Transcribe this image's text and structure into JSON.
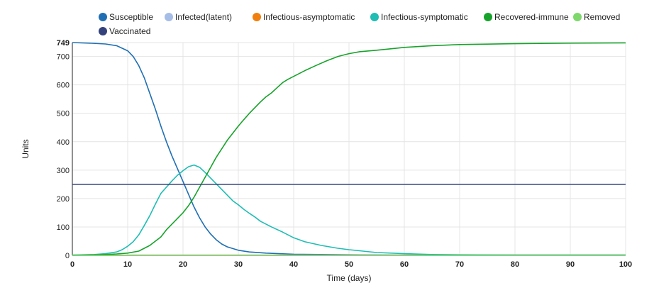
{
  "chart_data": {
    "type": "line",
    "title": "",
    "xlabel": "Time (days)",
    "ylabel": "Units",
    "xlim": [
      0,
      100
    ],
    "ylim": [
      0,
      749
    ],
    "x_ticks": [
      0,
      10,
      20,
      30,
      40,
      50,
      60,
      70,
      80,
      90,
      100
    ],
    "y_ticks": [
      0,
      100,
      200,
      300,
      400,
      500,
      600,
      700
    ],
    "y_max_label": "749",
    "grid": true,
    "legend_position": "top-left",
    "series": [
      {
        "name": "Susceptible",
        "color": "#1f6fb4",
        "points": [
          [
            0,
            749
          ],
          [
            3,
            747
          ],
          [
            6,
            744
          ],
          [
            8,
            738
          ],
          [
            10,
            720
          ],
          [
            11,
            700
          ],
          [
            12,
            668
          ],
          [
            13,
            625
          ],
          [
            14,
            570
          ],
          [
            15,
            515
          ],
          [
            16,
            455
          ],
          [
            17,
            400
          ],
          [
            18,
            350
          ],
          [
            19,
            305
          ],
          [
            20,
            260
          ],
          [
            21,
            215
          ],
          [
            22,
            170
          ],
          [
            23,
            132
          ],
          [
            24,
            100
          ],
          [
            25,
            75
          ],
          [
            26,
            55
          ],
          [
            27,
            40
          ],
          [
            28,
            30
          ],
          [
            30,
            18
          ],
          [
            32,
            12
          ],
          [
            35,
            8
          ],
          [
            40,
            4
          ],
          [
            50,
            2
          ],
          [
            60,
            1
          ],
          [
            100,
            1
          ]
        ]
      },
      {
        "name": "Infected(latent)",
        "color": "#a6bde8",
        "points": [
          [
            0,
            1
          ],
          [
            100,
            1
          ]
        ]
      },
      {
        "name": "Infectious-asymptomatic",
        "color": "#f07f0e",
        "points": [
          [
            0,
            0
          ],
          [
            100,
            0
          ]
        ]
      },
      {
        "name": "Infectious-symptomatic",
        "color": "#1fbdb4",
        "points": [
          [
            0,
            1
          ],
          [
            4,
            3
          ],
          [
            6,
            6
          ],
          [
            8,
            12
          ],
          [
            9,
            20
          ],
          [
            10,
            32
          ],
          [
            11,
            48
          ],
          [
            12,
            72
          ],
          [
            13,
            105
          ],
          [
            14,
            140
          ],
          [
            15,
            180
          ],
          [
            16,
            218
          ],
          [
            17,
            240
          ],
          [
            18,
            262
          ],
          [
            19,
            282
          ],
          [
            20,
            298
          ],
          [
            21,
            312
          ],
          [
            22,
            318
          ],
          [
            23,
            310
          ],
          [
            24,
            292
          ],
          [
            25,
            272
          ],
          [
            26,
            252
          ],
          [
            27,
            232
          ],
          [
            28,
            212
          ],
          [
            29,
            192
          ],
          [
            30,
            178
          ],
          [
            31,
            162
          ],
          [
            32,
            148
          ],
          [
            33,
            135
          ],
          [
            34,
            120
          ],
          [
            35,
            110
          ],
          [
            36,
            100
          ],
          [
            38,
            82
          ],
          [
            40,
            62
          ],
          [
            42,
            48
          ],
          [
            45,
            35
          ],
          [
            48,
            25
          ],
          [
            50,
            20
          ],
          [
            55,
            10
          ],
          [
            60,
            6
          ],
          [
            65,
            3
          ],
          [
            70,
            2
          ],
          [
            80,
            1
          ],
          [
            100,
            1
          ]
        ]
      },
      {
        "name": "Recovered-immune",
        "color": "#17a32b",
        "points": [
          [
            0,
            0
          ],
          [
            5,
            2
          ],
          [
            8,
            5
          ],
          [
            10,
            8
          ],
          [
            12,
            15
          ],
          [
            14,
            35
          ],
          [
            16,
            65
          ],
          [
            17,
            90
          ],
          [
            18,
            110
          ],
          [
            19,
            130
          ],
          [
            20,
            150
          ],
          [
            21,
            175
          ],
          [
            22,
            205
          ],
          [
            23,
            240
          ],
          [
            24,
            275
          ],
          [
            25,
            310
          ],
          [
            26,
            345
          ],
          [
            27,
            375
          ],
          [
            28,
            405
          ],
          [
            29,
            430
          ],
          [
            30,
            455
          ],
          [
            31,
            478
          ],
          [
            32,
            500
          ],
          [
            33,
            520
          ],
          [
            34,
            540
          ],
          [
            35,
            558
          ],
          [
            36,
            572
          ],
          [
            37,
            590
          ],
          [
            38,
            608
          ],
          [
            39,
            620
          ],
          [
            40,
            630
          ],
          [
            42,
            650
          ],
          [
            44,
            668
          ],
          [
            46,
            685
          ],
          [
            48,
            700
          ],
          [
            50,
            710
          ],
          [
            52,
            717
          ],
          [
            55,
            722
          ],
          [
            58,
            728
          ],
          [
            60,
            732
          ],
          [
            65,
            738
          ],
          [
            70,
            742
          ],
          [
            80,
            745
          ],
          [
            90,
            747
          ],
          [
            100,
            748
          ]
        ]
      },
      {
        "name": "Removed",
        "color": "#7ed86c",
        "points": [
          [
            0,
            0
          ],
          [
            100,
            0
          ]
        ]
      },
      {
        "name": "Vaccinated",
        "color": "#34427c",
        "points": [
          [
            0,
            250
          ],
          [
            100,
            250
          ]
        ]
      }
    ]
  }
}
